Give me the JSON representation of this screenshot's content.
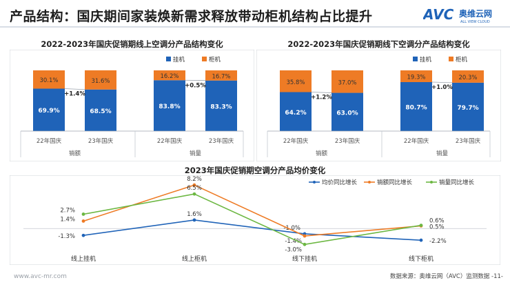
{
  "page": {
    "title": "产品结构：国庆期间家装焕新需求释放带动柜机结构占比提升",
    "footer_left": "www.avc-mr.com",
    "footer_right": "数据来源：奥维云网（AVC）监测数据  -11-"
  },
  "logo": {
    "mark": "AVC",
    "cn": "奥维云网",
    "en": "ALL VIEW CLOUD"
  },
  "colors": {
    "blue": "#1f63b8",
    "orange": "#ee7b25",
    "green": "#6cb742",
    "text": "#222222"
  },
  "chart_data": [
    {
      "type": "bar",
      "stacked": true,
      "title": "2022-2023年国庆促销期线上空调分产品结构变化",
      "legend": [
        "挂机",
        "柜机"
      ],
      "legend_position": "top-right",
      "categories": [
        "22年国庆",
        "23年国庆",
        "22年国庆",
        "23年国庆"
      ],
      "groups": [
        "销额",
        "销量"
      ],
      "series": [
        {
          "name": "挂机",
          "values": [
            69.9,
            68.5,
            83.8,
            83.3
          ],
          "labels": [
            "69.9%",
            "68.5%",
            "83.8%",
            "83.3%"
          ]
        },
        {
          "name": "柜机",
          "values": [
            30.1,
            31.6,
            16.2,
            16.7
          ],
          "labels": [
            "30.1%",
            "31.6%",
            "16.2%",
            "16.7%"
          ]
        }
      ],
      "annotations": [
        "+1.4%",
        "+0.5%"
      ],
      "ylim": [
        0,
        100
      ]
    },
    {
      "type": "bar",
      "stacked": true,
      "title": "2022-2023年国庆促销期线下空调分产品结构变化",
      "legend": [
        "挂机",
        "柜机"
      ],
      "legend_position": "top-right",
      "categories": [
        "22年国庆",
        "23年国庆",
        "22年国庆",
        "23年国庆"
      ],
      "groups": [
        "销额",
        "销量"
      ],
      "series": [
        {
          "name": "挂机",
          "values": [
            64.2,
            63.0,
            80.7,
            79.7
          ],
          "labels": [
            "64.2%",
            "63.0%",
            "80.7%",
            "79.7%"
          ]
        },
        {
          "name": "柜机",
          "values": [
            35.8,
            37.0,
            19.3,
            20.3
          ],
          "labels": [
            "35.8%",
            "37.0%",
            "19.3%",
            "20.3%"
          ]
        }
      ],
      "annotations": [
        "+1.2%",
        "+1.0%"
      ],
      "ylim": [
        0,
        100
      ]
    },
    {
      "type": "line",
      "title": "2023年国庆促销期空调分产品均价变化",
      "legend_position": "top-right",
      "categories": [
        "线上挂机",
        "线上柜机",
        "线下挂机",
        "线下柜机"
      ],
      "series": [
        {
          "name": "均价同比增长",
          "values": [
            -1.3,
            1.6,
            -1.0,
            -2.2
          ],
          "labels": [
            "-1.3%",
            "1.6%",
            "-1.0%",
            "-2.2%"
          ]
        },
        {
          "name": "销额同比增长",
          "values": [
            1.4,
            8.2,
            -1.4,
            0.5
          ],
          "labels": [
            "1.4%",
            "8.2%",
            "-1.4%",
            "0.5%"
          ]
        },
        {
          "name": "销量同比增长",
          "values": [
            2.7,
            6.5,
            -3.0,
            0.6
          ],
          "labels": [
            "2.7%",
            "6.5%",
            "-3.0%",
            "0.6%"
          ]
        }
      ],
      "ylim": [
        -4,
        9
      ]
    }
  ]
}
